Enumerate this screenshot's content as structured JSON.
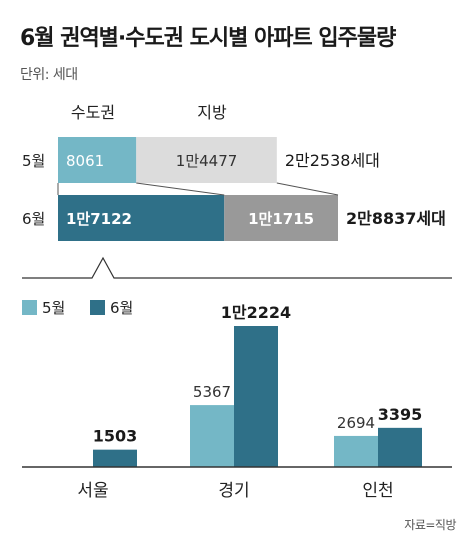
{
  "title": "6월 권역별·수도권 도시별 아파트 입주물량",
  "unit_label": "단위: 세대",
  "source": "자료=직방",
  "colors": {
    "may": "#74b7c6",
    "june": "#2f7088",
    "provincial_may": "#dcdcdc",
    "provincial_june": "#999999"
  },
  "chart_data": [
    {
      "type": "bar",
      "orientation": "horizontal-stacked",
      "categories": [
        "5월",
        "6월"
      ],
      "segment_labels": [
        "수도권",
        "지방"
      ],
      "series": [
        {
          "name": "수도권",
          "values": [
            8061,
            17122
          ],
          "labels": [
            "8061",
            "1만7122"
          ]
        },
        {
          "name": "지방",
          "values": [
            14477,
            11715
          ],
          "labels": [
            "1만4477",
            "1만1715"
          ]
        }
      ],
      "totals": [
        22538,
        28837
      ],
      "total_labels": [
        "2만2538세대",
        "2만8837세대"
      ]
    },
    {
      "type": "bar",
      "categories": [
        "서울",
        "경기",
        "인천"
      ],
      "legend": [
        "5월",
        "6월"
      ],
      "series": [
        {
          "name": "5월",
          "values": [
            0,
            5367,
            2694
          ],
          "labels": [
            "",
            "5367",
            "2694"
          ]
        },
        {
          "name": "6월",
          "values": [
            1503,
            12224,
            3395
          ],
          "labels": [
            "1503",
            "1만2224",
            "3395"
          ]
        }
      ],
      "legend_position": "top-left",
      "grid": false
    }
  ]
}
